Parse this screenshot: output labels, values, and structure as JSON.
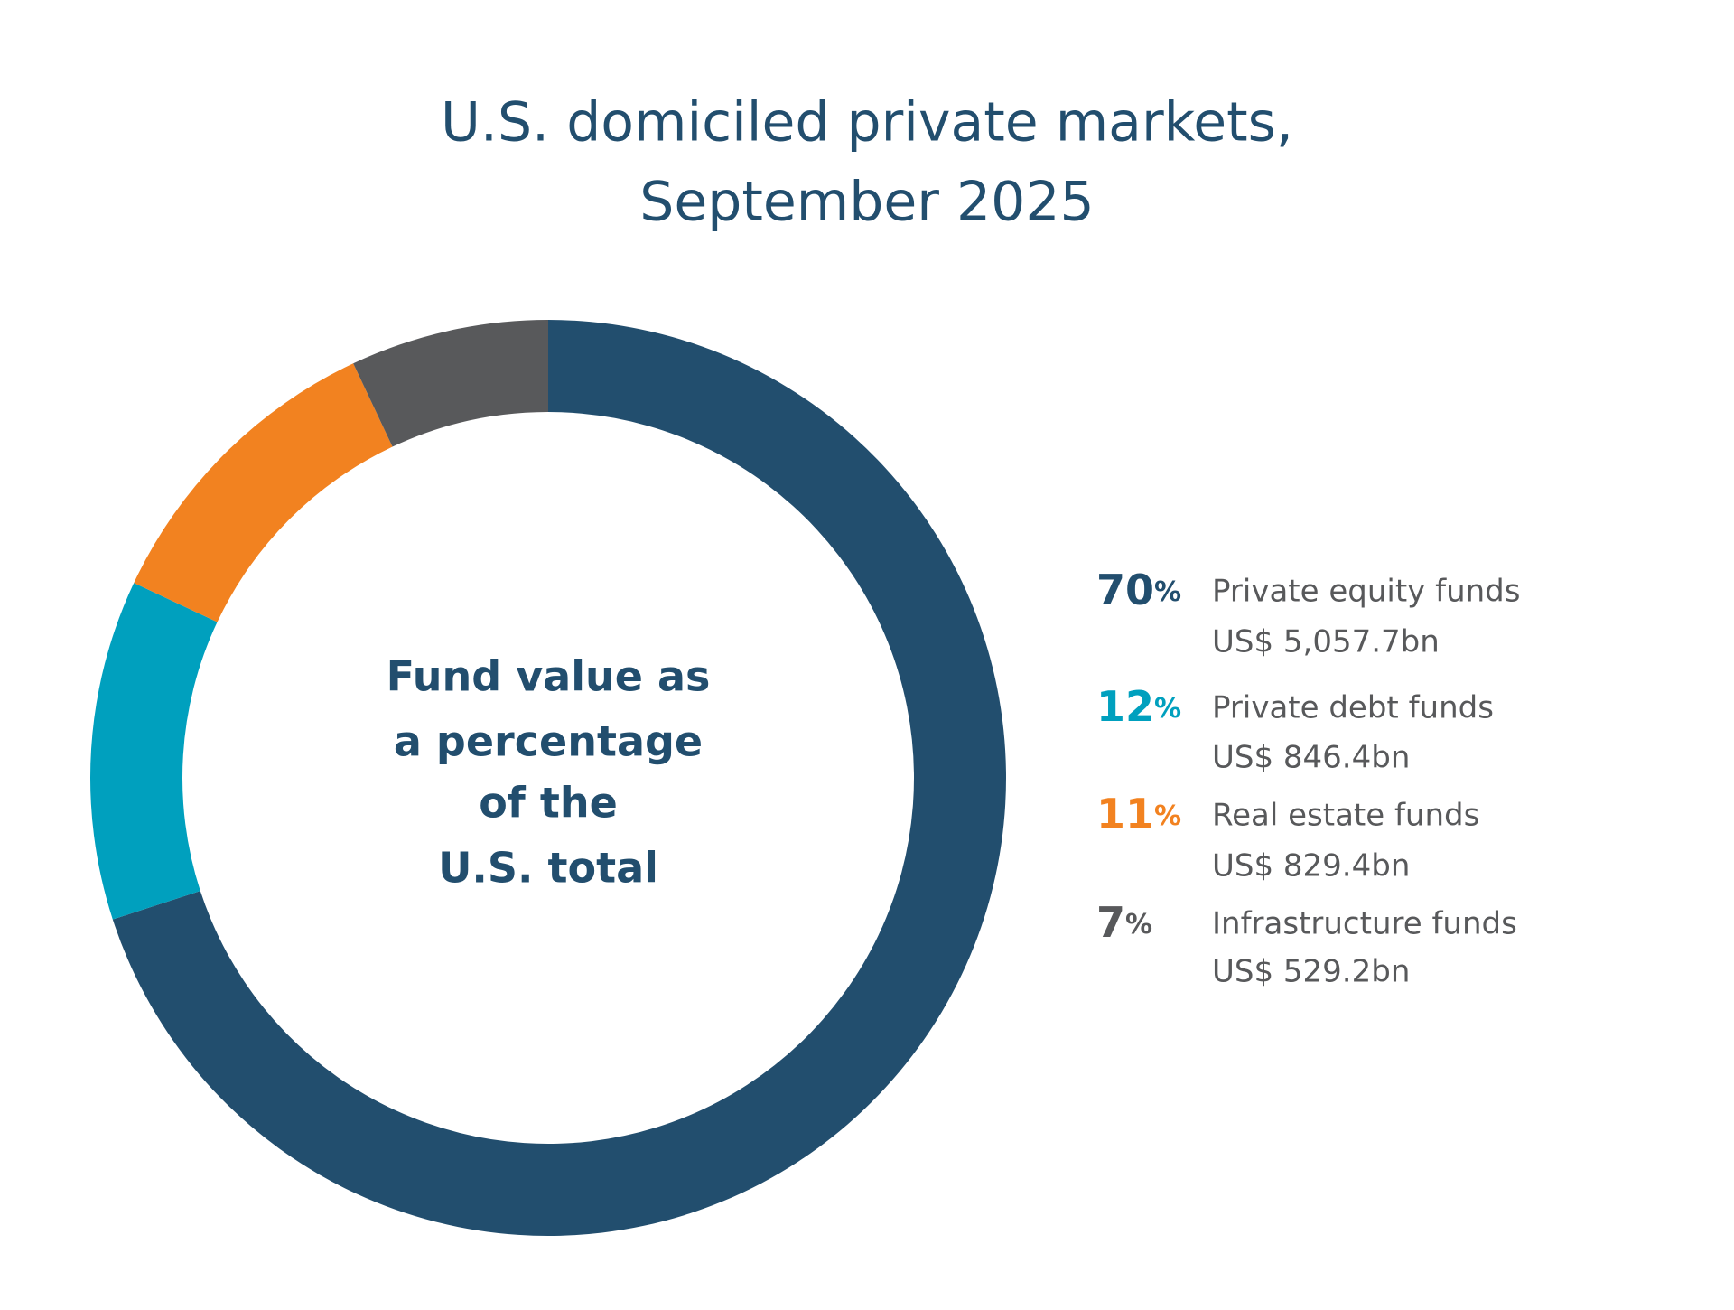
{
  "chart_data": {
    "type": "donut",
    "title": [
      "U.S. domiciled private markets,",
      "September 2025"
    ],
    "center_label": [
      "Fund value as",
      "a percentage",
      "of the",
      "U.S. total"
    ],
    "categories": [
      "Private equity funds",
      "Private debt funds",
      "Real estate funds",
      "Infrastructure funds"
    ],
    "values": [
      70,
      12,
      11,
      7
    ],
    "value_labels": [
      "70%",
      "12%",
      "11%",
      "7%"
    ],
    "details": [
      "US$ 5,057.7bn",
      "US$ 846.4bn",
      "US$ 829.4bn",
      "US$ 529.2bn"
    ],
    "colors": [
      "#224e6e",
      "#00a0be",
      "#f28220",
      "#58595b"
    ]
  }
}
